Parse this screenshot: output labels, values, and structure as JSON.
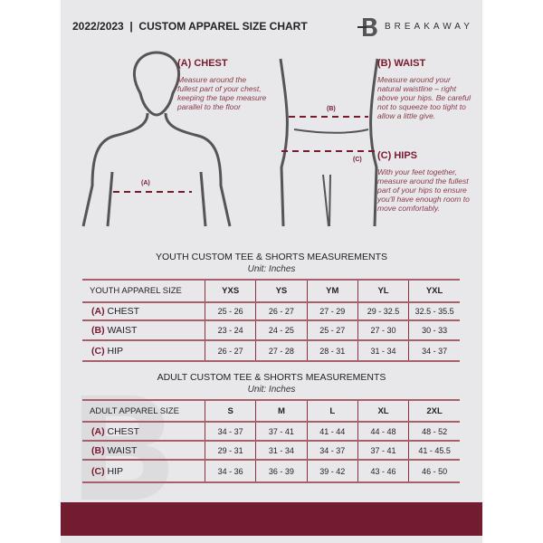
{
  "header": {
    "title": "2022/2023  |  CUSTOM APPAREL SIZE CHART",
    "brand": "BREAKAWAY"
  },
  "guide": {
    "chest": {
      "label": "(A) CHEST",
      "text": "Measure around the fullest part of your chest, keeping the tape measure parallel to the floor",
      "marker": "(A)"
    },
    "waist": {
      "label": "(B) WAIST",
      "text": "Measure around your natural waistline – right above your hips. Be careful not to squeeze too tight to allow a little give.",
      "marker": "(B)"
    },
    "hips": {
      "label": "(C) HIPS",
      "text": "With your feet together, measure around the fullest part of your hips to ensure you'll have enough room to move comfortably.",
      "marker": "(C)"
    }
  },
  "youth": {
    "title": "YOUTH CUSTOM TEE & SHORTS MEASUREMENTS",
    "unit": "Unit: Inches",
    "header": "YOUTH APPAREL SIZE",
    "sizes": [
      "YXS",
      "YS",
      "YM",
      "YL",
      "YXL"
    ],
    "rows": [
      {
        "letter": "(A)",
        "name": "CHEST",
        "values": [
          "25 - 26",
          "26 - 27",
          "27 - 29",
          "29 - 32.5",
          "32.5 - 35.5"
        ]
      },
      {
        "letter": "(B)",
        "name": "WAIST",
        "values": [
          "23 - 24",
          "24 - 25",
          "25 - 27",
          "27 - 30",
          "30 - 33"
        ]
      },
      {
        "letter": "(C)",
        "name": "HIP",
        "values": [
          "26 - 27",
          "27 - 28",
          "28 - 31",
          "31 - 34",
          "34 - 37"
        ]
      }
    ]
  },
  "adult": {
    "title": "ADULT CUSTOM TEE & SHORTS MEASUREMENTS",
    "unit": "Unit: Inches",
    "header": "ADULT APPAREL SIZE",
    "sizes": [
      "S",
      "M",
      "L",
      "XL",
      "2XL"
    ],
    "rows": [
      {
        "letter": "(A)",
        "name": "CHEST",
        "values": [
          "34 - 37",
          "37 - 41",
          "41 - 44",
          "44 - 48",
          "48 - 52"
        ]
      },
      {
        "letter": "(B)",
        "name": "WAIST",
        "values": [
          "29 - 31",
          "31 - 34",
          "34 - 37",
          "37 - 41",
          "41 - 45.5"
        ]
      },
      {
        "letter": "(C)",
        "name": "HIP",
        "values": [
          "34 - 36",
          "36 - 39",
          "39 - 42",
          "43 - 46",
          "46 - 50"
        ]
      }
    ]
  },
  "colors": {
    "accent": "#731b30",
    "panel": "#e8e8ea"
  }
}
